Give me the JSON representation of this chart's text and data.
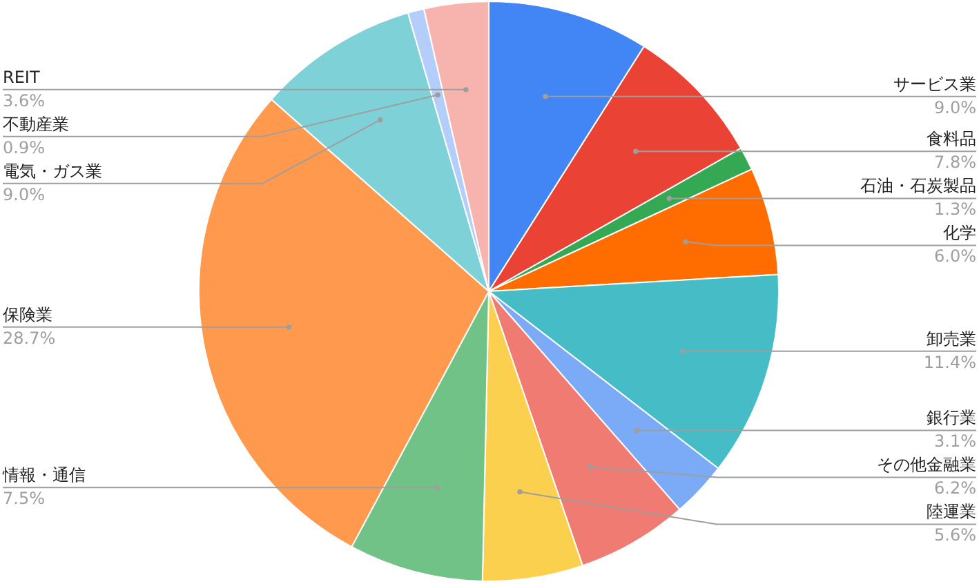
{
  "chart_data": {
    "type": "pie",
    "categories": [
      "サービス業",
      "食料品",
      "石油・石炭製品",
      "化学",
      "卸売業",
      "銀行業",
      "その他金融業",
      "陸運業",
      "情報・通信",
      "保険業",
      "電気・ガス業",
      "不動産業",
      "REIT"
    ],
    "values": [
      9.0,
      7.8,
      1.3,
      6.0,
      11.4,
      3.1,
      6.2,
      5.6,
      7.5,
      28.7,
      9.0,
      0.9,
      3.6
    ],
    "value_labels": [
      "9.0%",
      "7.8%",
      "1.3%",
      "6.0%",
      "11.4%",
      "3.1%",
      "6.2%",
      "5.6%",
      "7.5%",
      "28.7%",
      "9.0%",
      "0.9%",
      "3.6%"
    ],
    "colors": [
      "#4285f4",
      "#ea4335",
      "#34a853",
      "#ff6d01",
      "#46bdc6",
      "#7baaf7",
      "#f07b72",
      "#fcd04f",
      "#71c287",
      "#ff994d",
      "#7ed1d7",
      "#b3cefb",
      "#f7b4ae"
    ]
  }
}
